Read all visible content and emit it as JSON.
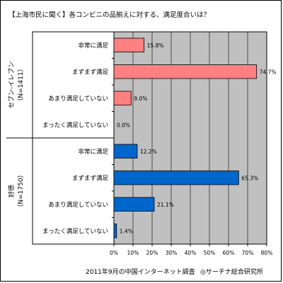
{
  "chart_data": {
    "type": "bar",
    "orientation": "horizontal",
    "title": "【上海市民に聞く】各コンビニの品揃えに対する、満足度合いは？",
    "x_ticks": [
      "0%",
      "10%",
      "20%",
      "30%",
      "40%",
      "50%",
      "60%",
      "70%",
      "80%"
    ],
    "xlim": [
      0,
      80
    ],
    "categories": [
      "非常に満足",
      "まずまず満足",
      "あまり満足していない",
      "まったく満足していない"
    ],
    "groups": [
      {
        "label": "セブン-イレブン",
        "n_label": "（N=1411）",
        "color": "#ff8080",
        "values": [
          15.8,
          74.7,
          9.0,
          0.0
        ],
        "value_labels": [
          "15.8%",
          "74.7%",
          "9.0%",
          "0.0%"
        ]
      },
      {
        "label": "好徳",
        "n_label": "（N=1750）",
        "color": "#0066cc",
        "values": [
          12.2,
          65.3,
          21.1,
          1.4
        ],
        "value_labels": [
          "12.2%",
          "65.3%",
          "21.1%",
          "1.4%"
        ]
      }
    ],
    "grid": true,
    "plot_background": "#c0c0c0"
  },
  "footer": {
    "source": "2011年9月の中国インターネット調査",
    "credit": "◎サーチナ総合研究所"
  }
}
